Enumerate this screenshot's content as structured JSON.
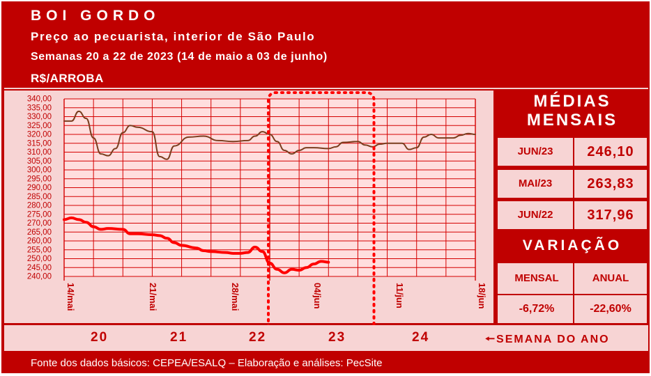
{
  "header": {
    "title": "BOI GORDO",
    "subtitle": "Preço ao pecuarista, interior de São Paulo",
    "period": "Semanas 20 a 22 de 2023 (14 de maio a 03 de junho)",
    "unit": "R$/ARROBA"
  },
  "medias": {
    "title": "MÉDIAS MENSAIS",
    "rows": [
      {
        "label": "JUN/23",
        "value": "246,10"
      },
      {
        "label": "MAI/23",
        "value": "263,83"
      },
      {
        "label": "JUN/22",
        "value": "317,96"
      }
    ]
  },
  "variacao": {
    "title": "VARIAÇÃO",
    "headers": [
      "MENSAL",
      "ANUAL"
    ],
    "values": [
      "-6,72%",
      "-22,60%"
    ]
  },
  "weeks": {
    "numbers": [
      "20",
      "21",
      "22",
      "23",
      "24"
    ],
    "label": "SEMANA DO ANO"
  },
  "footer": {
    "source": "Fonte dos dados básicos: CEPEA/ESALQ – Elaboração e análises: PecSite"
  },
  "colors": {
    "background": "#c00000",
    "plot_background": "#f7d4d4",
    "line_2023": "#ff0000",
    "line_2022": "#7a3d1e",
    "highlight_border": "#ff0000"
  },
  "chart_data": {
    "type": "line",
    "x_tick_labels": [
      "14/mai",
      "21/mai",
      "28/mai",
      "04/jun",
      "11/jun",
      "18/jun"
    ],
    "y_ticks": [
      "240,00",
      "245,00",
      "250,00",
      "255,00",
      "260,00",
      "265,00",
      "270,00",
      "275,00",
      "280,00",
      "285,00",
      "290,00",
      "295,00",
      "300,00",
      "305,00",
      "310,00",
      "315,00",
      "320,00",
      "325,00",
      "330,00",
      "335,00",
      "340,00"
    ],
    "ylim": [
      240,
      340
    ],
    "highlight_range": [
      "28/mai",
      "04/jun"
    ],
    "grid": true,
    "series": [
      {
        "color": "#7a3d1e",
        "points": [
          [
            0.0,
            327.5
          ],
          [
            0.5,
            327.5
          ],
          [
            1.0,
            333.0
          ],
          [
            1.5,
            329.0
          ],
          [
            2.0,
            318.0
          ],
          [
            2.5,
            309.0
          ],
          [
            3.0,
            308.0
          ],
          [
            3.5,
            312.0
          ],
          [
            4.0,
            321.0
          ],
          [
            4.5,
            325.0
          ],
          [
            5.0,
            324.0
          ],
          [
            6.0,
            321.5
          ],
          [
            6.5,
            307.5
          ],
          [
            7.0,
            306.0
          ],
          [
            7.5,
            313.5
          ],
          [
            8.5,
            318.5
          ],
          [
            9.5,
            319.0
          ],
          [
            10.5,
            316.5
          ],
          [
            11.5,
            316.0
          ],
          [
            12.5,
            316.5
          ],
          [
            13.0,
            319.0
          ],
          [
            13.5,
            321.5
          ],
          [
            14.0,
            320.0
          ],
          [
            14.5,
            316.0
          ],
          [
            15.0,
            311.0
          ],
          [
            15.5,
            309.0
          ],
          [
            16.0,
            311.0
          ],
          [
            16.5,
            312.5
          ],
          [
            17.0,
            312.5
          ],
          [
            18.0,
            312.0
          ],
          [
            18.5,
            313.0
          ],
          [
            19.0,
            315.5
          ],
          [
            20.0,
            316.0
          ],
          [
            20.5,
            314.0
          ],
          [
            21.0,
            313.0
          ],
          [
            21.5,
            314.5
          ],
          [
            22.0,
            315.0
          ],
          [
            22.5,
            315.0
          ],
          [
            23.0,
            315.0
          ],
          [
            23.5,
            311.5
          ],
          [
            24.0,
            312.5
          ],
          [
            24.5,
            318.5
          ],
          [
            25.0,
            320.0
          ],
          [
            25.5,
            318.0
          ],
          [
            26.5,
            318.0
          ],
          [
            27.0,
            319.5
          ],
          [
            27.5,
            320.5
          ],
          [
            28.0,
            320.0
          ]
        ]
      },
      {
        "color": "#ff0000",
        "points": [
          [
            0.0,
            272.0
          ],
          [
            0.5,
            273.0
          ],
          [
            1.0,
            272.0
          ],
          [
            1.5,
            270.5
          ],
          [
            2.0,
            268.0
          ],
          [
            2.5,
            266.5
          ],
          [
            3.0,
            267.0
          ],
          [
            4.0,
            266.5
          ],
          [
            4.5,
            264.0
          ],
          [
            5.0,
            264.0
          ],
          [
            6.0,
            263.5
          ],
          [
            6.5,
            263.0
          ],
          [
            7.0,
            261.5
          ],
          [
            7.5,
            259.0
          ],
          [
            8.0,
            257.5
          ],
          [
            9.0,
            256.0
          ],
          [
            9.5,
            254.5
          ],
          [
            10.0,
            254.0
          ],
          [
            11.0,
            253.5
          ],
          [
            11.5,
            253.0
          ],
          [
            12.0,
            253.0
          ],
          [
            12.5,
            253.5
          ],
          [
            13.0,
            256.5
          ],
          [
            13.5,
            254.0
          ],
          [
            14.0,
            247.5
          ],
          [
            14.5,
            244.0
          ],
          [
            15.0,
            242.0
          ],
          [
            15.5,
            244.0
          ],
          [
            16.0,
            243.5
          ],
          [
            16.5,
            245.0
          ],
          [
            17.0,
            247.0
          ],
          [
            17.5,
            248.5
          ],
          [
            18.0,
            248.0
          ]
        ]
      }
    ]
  }
}
